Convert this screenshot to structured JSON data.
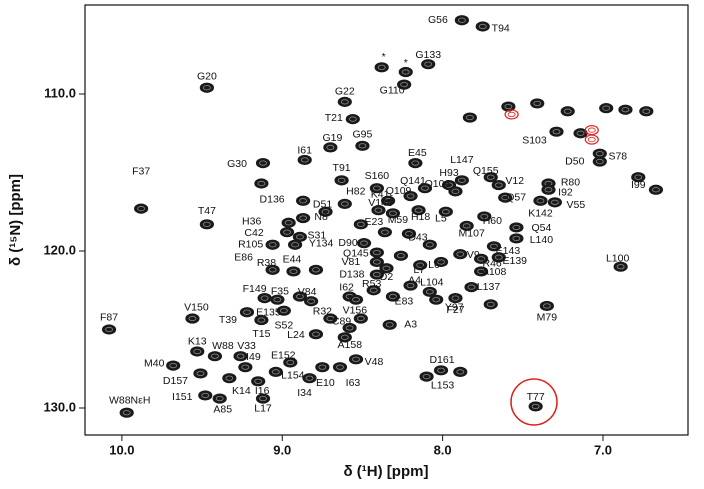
{
  "chart_data": {
    "type": "scatter",
    "x_label": "δ (¹H) [ppm]",
    "y_label": "δ (¹⁵N) [ppm]",
    "xlim": [
      10.23,
      6.47
    ],
    "ylim": [
      131.72,
      104.33
    ],
    "xticks": [
      {
        "value": 10,
        "label": "10.0"
      },
      {
        "value": 9,
        "label": "9.0"
      },
      {
        "value": 8,
        "label": "8.0"
      },
      {
        "value": 7,
        "label": "7.0"
      }
    ],
    "yticks": [
      {
        "value": 110,
        "label": "110.0"
      },
      {
        "value": 120,
        "label": "120.0"
      },
      {
        "value": 130,
        "label": "130.0"
      }
    ],
    "color": "#1a1a1a",
    "point_labels": [
      "G56",
      "T94",
      "G133",
      "*",
      "*",
      "G110",
      "G20",
      "G22",
      "T21",
      "G19",
      "G95",
      "I61",
      "G30",
      "T91",
      "E45",
      "S160",
      "F37",
      "T47",
      "H82",
      "K41",
      "D136",
      "D51",
      "V148",
      "E23",
      "N8",
      "H36",
      "C42",
      "S31",
      "Y134",
      "R105",
      "D90",
      "Q145",
      "V81",
      "E86",
      "R38",
      "E44",
      "D138",
      "D2",
      "F35",
      "F149",
      "V84",
      "I62",
      "R53",
      "E83",
      "Y97",
      "A4",
      "L7",
      "L6",
      "L104",
      "T39",
      "E135",
      "S52",
      "T15",
      "R32",
      "V156",
      "C89",
      "A3",
      "L24",
      "A158",
      "F27",
      "L137",
      "M79",
      "V150",
      "F87",
      "K13",
      "W88",
      "V33",
      "M40",
      "I49",
      "E152",
      "D157",
      "L154",
      "K14",
      "I16",
      "I151",
      "A85",
      "L17",
      "I34",
      "E10",
      "I63",
      "V48",
      "L153",
      "D161",
      "W88NεH",
      "T77",
      "L100",
      "I99",
      "D50",
      "S78",
      "S103",
      "R80",
      "I92",
      "V55",
      "K142",
      "Q57",
      "V12",
      "Q155",
      "L147",
      "H93",
      "Q106",
      "Q141",
      "Q109",
      "M59",
      "H18",
      "L5",
      "H60",
      "M107",
      "D43",
      "V9",
      "Q54",
      "L140",
      "E143",
      "E139",
      "R46",
      "A108"
    ],
    "x": [
      7.88,
      7.75,
      8.09,
      8.38,
      8.23,
      8.24,
      9.47,
      8.61,
      8.56,
      8.7,
      8.5,
      8.86,
      9.12,
      8.63,
      8.17,
      8.41,
      9.88,
      9.47,
      8.61,
      8.34,
      8.87,
      8.73,
      8.4,
      8.51,
      8.87,
      8.96,
      8.97,
      8.89,
      8.92,
      9.06,
      8.49,
      8.41,
      8.41,
      9.06,
      8.93,
      8.79,
      8.41,
      8.35,
      8.89,
      9.11,
      8.82,
      8.58,
      8.43,
      8.31,
      8.04,
      8.2,
      8.14,
      8.01,
      8.08,
      9.22,
      9.03,
      8.99,
      9.13,
      8.7,
      8.51,
      8.58,
      8.33,
      8.79,
      8.61,
      7.92,
      7.82,
      7.35,
      9.56,
      10.08,
      9.53,
      9.42,
      9.26,
      9.68,
      9.23,
      8.95,
      9.51,
      9.04,
      9.33,
      9.15,
      9.48,
      9.39,
      9.12,
      8.83,
      8.75,
      8.64,
      8.54,
      8.1,
      8.01,
      9.97,
      7.42,
      6.89,
      6.78,
      7.02,
      7.02,
      7.29,
      7.34,
      7.34,
      7.3,
      7.39,
      7.61,
      7.65,
      7.7,
      7.88,
      7.96,
      7.92,
      8.11,
      8.2,
      8.31,
      8.15,
      7.98,
      7.74,
      7.85,
      8.21,
      7.89,
      7.54,
      7.54,
      7.68,
      7.65,
      7.76,
      7.76
    ],
    "values": [
      105.3,
      105.7,
      108.1,
      108.3,
      108.6,
      109.4,
      109.6,
      110.5,
      111.6,
      113.4,
      113.3,
      114.2,
      114.4,
      115.5,
      114.4,
      116.0,
      117.3,
      118.3,
      117.0,
      116.8,
      116.8,
      117.5,
      117.4,
      118.3,
      117.9,
      118.2,
      118.8,
      119.1,
      119.6,
      119.6,
      119.5,
      120.1,
      120.7,
      121.2,
      121.3,
      121.2,
      121.5,
      121.1,
      122.9,
      123.0,
      123.2,
      122.9,
      122.5,
      122.9,
      123.1,
      122.2,
      120.9,
      120.7,
      122.6,
      123.9,
      123.1,
      123.8,
      124.4,
      124.3,
      124.3,
      124.9,
      124.7,
      125.3,
      125.5,
      123.0,
      122.3,
      123.5,
      124.3,
      125.0,
      126.4,
      126.7,
      126.7,
      127.3,
      127.4,
      127.1,
      127.8,
      127.7,
      128.1,
      128.3,
      129.2,
      129.4,
      129.4,
      128.1,
      127.4,
      127.4,
      126.9,
      128.0,
      127.6,
      130.3,
      129.9,
      121.0,
      115.3,
      114.3,
      113.8,
      112.4,
      115.7,
      116.1,
      116.9,
      116.8,
      116.6,
      115.8,
      115.3,
      115.5,
      115.8,
      116.2,
      116.0,
      116.5,
      117.6,
      117.4,
      117.5,
      117.8,
      118.4,
      118.9,
      120.2,
      118.5,
      119.2,
      119.7,
      120.4,
      120.5,
      121.3
    ],
    "unassigned": {
      "color": "#1a1a1a",
      "x": [
        7.59,
        7.41,
        7.22,
        7.14,
        6.98,
        6.86,
        6.73,
        6.67,
        9.13,
        7.83,
        7.89,
        7.7,
        8.08,
        8.26,
        8.36,
        8.54
      ],
      "values": [
        110.8,
        110.6,
        111.1,
        112.5,
        110.9,
        111.0,
        111.1,
        116.1,
        115.7,
        111.5,
        127.7,
        123.4,
        119.6,
        120.3,
        118.8,
        123.1
      ]
    },
    "highlighted": {
      "color": "#e0201b",
      "x": [
        7.57,
        7.07,
        7.07
      ],
      "values": [
        111.3,
        112.9,
        112.3
      ]
    }
  }
}
